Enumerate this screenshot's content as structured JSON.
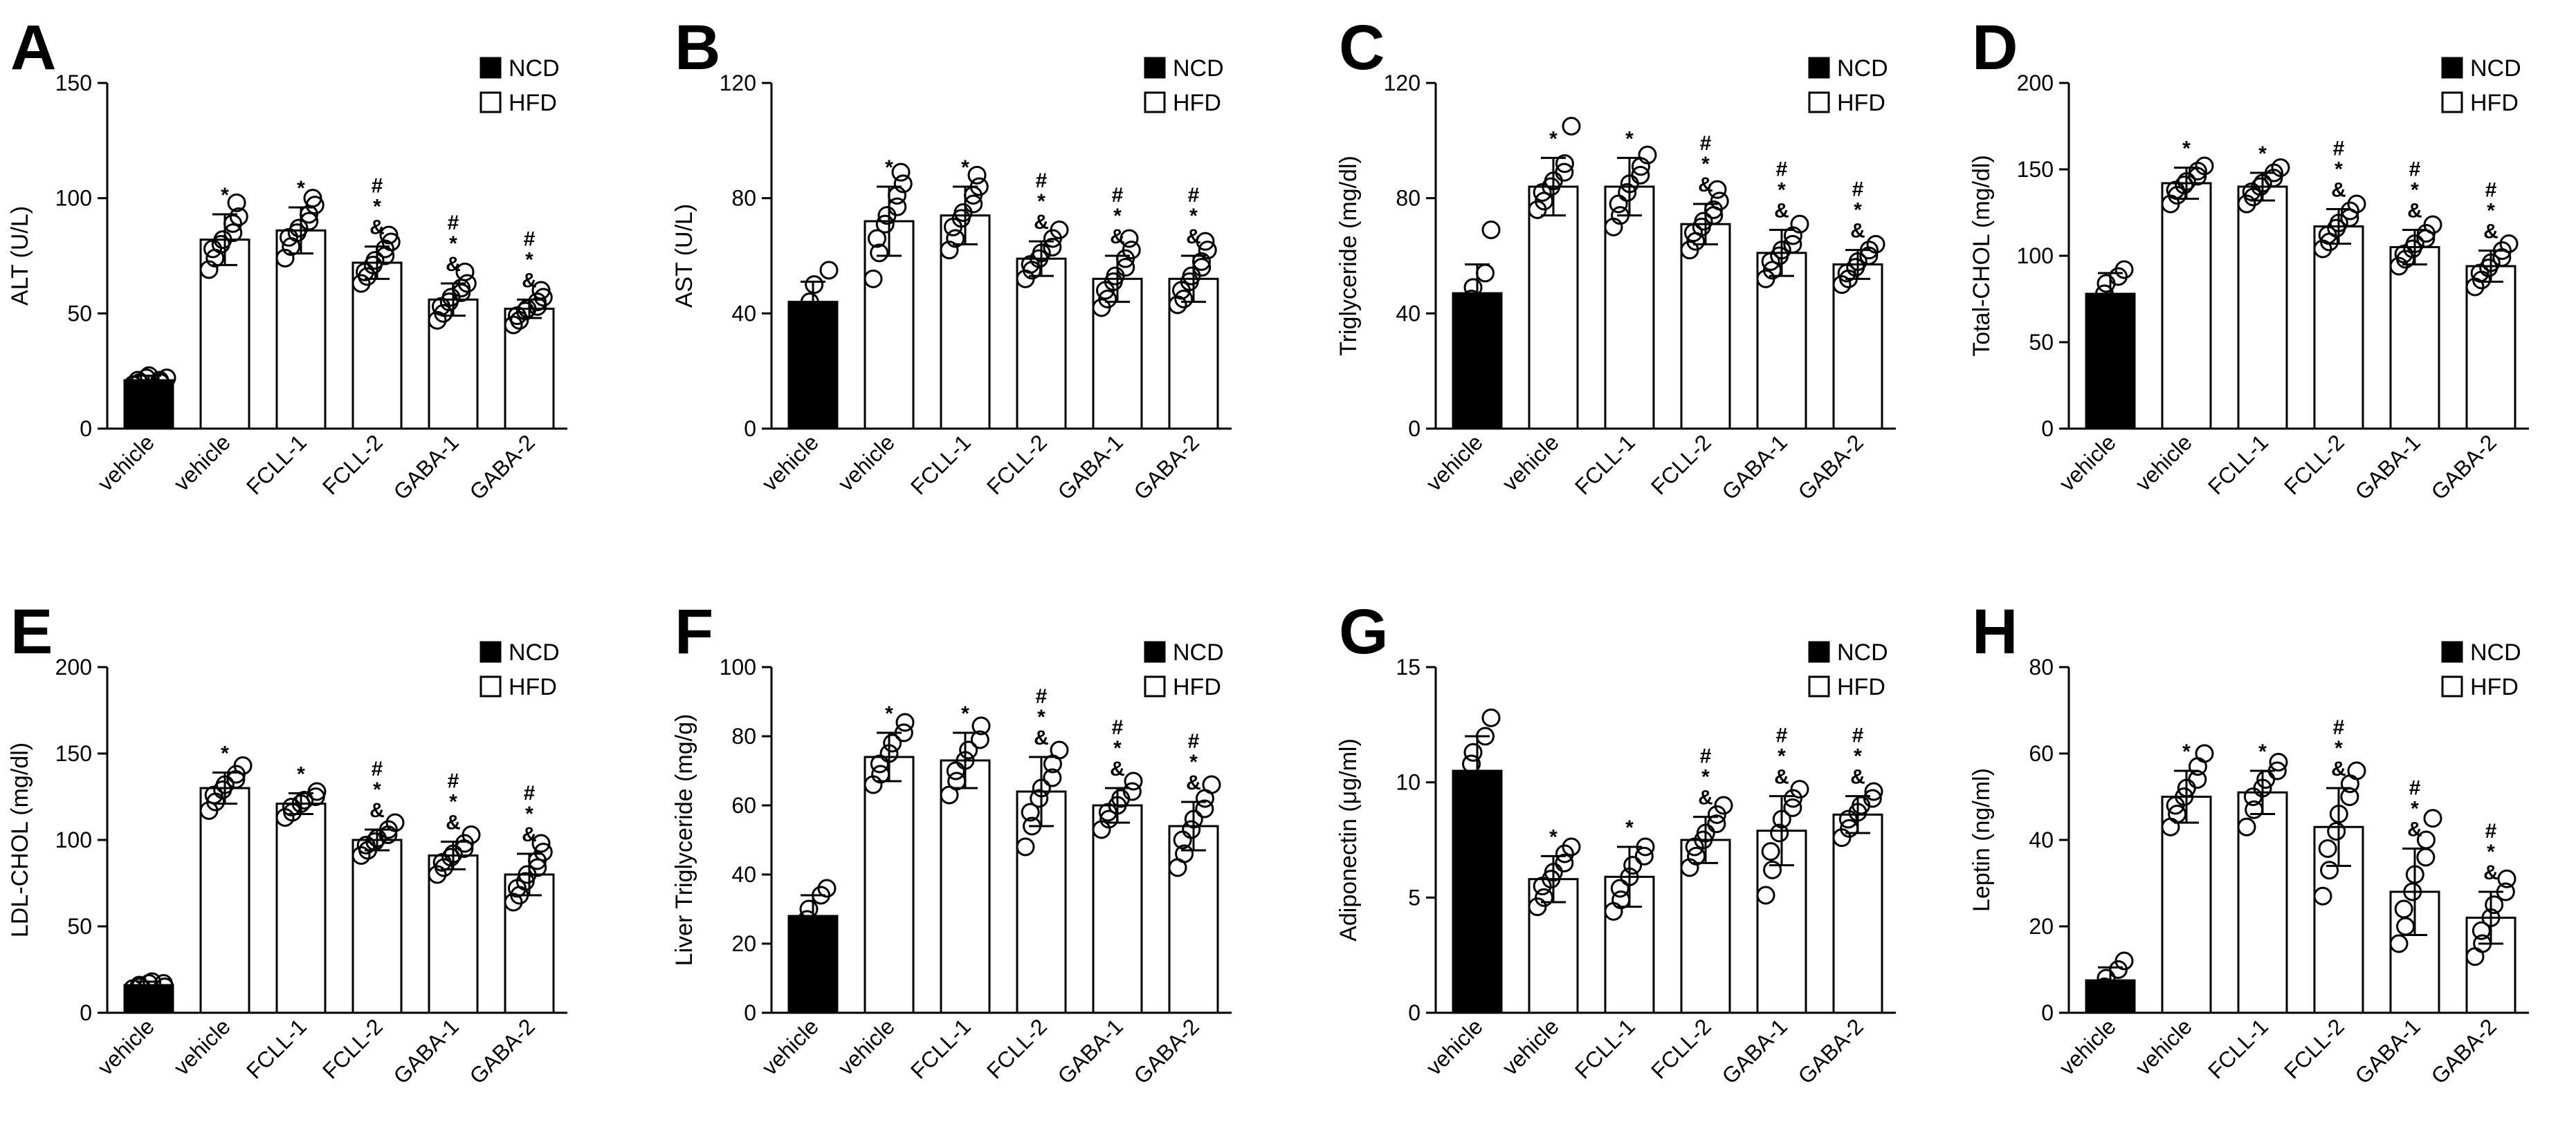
{
  "figure": {
    "legend": {
      "ncd": "NCD",
      "hfd": "HFD"
    },
    "colors": {
      "ncd": "#000000",
      "hfd": "#ffffff",
      "stroke": "#000000"
    }
  },
  "chart_data": [
    {
      "panel": "A",
      "type": "bar",
      "ylabel": "ALT (U/L)",
      "yticks": [
        0,
        50,
        100,
        150
      ],
      "ylim": [
        0,
        150
      ],
      "categories": [
        "vehicle",
        "vehicle",
        "FCLL-1",
        "FCLL-2",
        "GABA-1",
        "GABA-2"
      ],
      "groups": [
        "NCD",
        "HFD",
        "HFD",
        "HFD",
        "HFD",
        "HFD"
      ],
      "values": [
        21,
        82,
        86,
        72,
        56,
        52
      ],
      "errors": [
        2,
        11,
        10,
        7,
        7,
        4
      ],
      "significance": [
        "",
        "*",
        "*",
        "#*&",
        "#*&",
        "#*&"
      ],
      "points": [
        [
          19,
          20,
          21,
          22,
          23,
          21,
          20,
          22
        ],
        [
          69,
          74,
          78,
          80,
          82,
          85,
          89,
          92,
          98
        ],
        [
          74,
          79,
          83,
          85,
          87,
          90,
          93,
          97,
          100
        ],
        [
          63,
          66,
          68,
          71,
          73,
          75,
          78,
          81,
          84
        ],
        [
          47,
          50,
          53,
          55,
          57,
          59,
          61,
          63,
          68
        ],
        [
          45,
          47,
          49,
          51,
          52,
          53,
          55,
          57,
          60
        ]
      ]
    },
    {
      "panel": "B",
      "type": "bar",
      "ylabel": "AST (U/L)",
      "yticks": [
        0,
        40,
        80,
        120
      ],
      "ylim": [
        0,
        120
      ],
      "categories": [
        "vehicle",
        "vehicle",
        "FCLL-1",
        "FCLL-2",
        "GABA-1",
        "GABA-2"
      ],
      "groups": [
        "NCD",
        "HFD",
        "HFD",
        "HFD",
        "HFD",
        "HFD"
      ],
      "values": [
        44,
        72,
        74,
        59,
        52,
        52
      ],
      "errors": [
        7,
        12,
        10,
        6,
        8,
        8
      ],
      "significance": [
        "",
        "*",
        "*",
        "#*&",
        "#*&",
        "#*&"
      ],
      "points": [
        [
          41,
          44,
          50,
          55
        ],
        [
          52,
          61,
          66,
          71,
          74,
          77,
          81,
          85,
          89
        ],
        [
          62,
          66,
          70,
          73,
          75,
          78,
          81,
          84,
          88
        ],
        [
          52,
          55,
          57,
          59,
          61,
          63,
          66,
          69
        ],
        [
          42,
          45,
          48,
          51,
          53,
          56,
          59,
          62,
          66
        ],
        [
          43,
          45,
          48,
          51,
          53,
          56,
          58,
          62,
          65
        ]
      ]
    },
    {
      "panel": "C",
      "type": "bar",
      "ylabel": "Triglyceride (mg/dl)",
      "yticks": [
        0,
        40,
        80,
        120
      ],
      "ylim": [
        0,
        120
      ],
      "categories": [
        "vehicle",
        "vehicle",
        "FCLL-1",
        "FCLL-2",
        "GABA-1",
        "GABA-2"
      ],
      "groups": [
        "NCD",
        "HFD",
        "HFD",
        "HFD",
        "HFD",
        "HFD"
      ],
      "values": [
        47,
        84,
        84,
        71,
        61,
        57
      ],
      "errors": [
        10,
        10,
        10,
        7,
        8,
        5
      ],
      "significance": [
        "",
        "*",
        "*",
        "#*&",
        "#*&",
        "#*&"
      ],
      "points": [
        [
          42,
          45,
          49,
          54,
          69
        ],
        [
          76,
          79,
          82,
          84,
          86,
          89,
          92,
          105
        ],
        [
          70,
          74,
          78,
          82,
          85,
          88,
          91,
          95
        ],
        [
          62,
          65,
          68,
          70,
          72,
          74,
          76,
          79,
          83
        ],
        [
          52,
          55,
          58,
          60,
          62,
          64,
          67,
          71
        ],
        [
          50,
          52,
          54,
          56,
          58,
          60,
          62,
          64
        ]
      ]
    },
    {
      "panel": "D",
      "type": "bar",
      "ylabel": "Total-CHOL (mg/dl)",
      "yticks": [
        0,
        50,
        100,
        150,
        200
      ],
      "ylim": [
        0,
        200
      ],
      "categories": [
        "vehicle",
        "vehicle",
        "FCLL-1",
        "FCLL-2",
        "GABA-1",
        "GABA-2"
      ],
      "groups": [
        "NCD",
        "HFD",
        "HFD",
        "HFD",
        "HFD",
        "HFD"
      ],
      "values": [
        78,
        142,
        140,
        117,
        105,
        94
      ],
      "errors": [
        12,
        9,
        8,
        10,
        10,
        9
      ],
      "significance": [
        "",
        "*",
        "*",
        "#*&",
        "#*&",
        "#*&"
      ],
      "points": [
        [
          72,
          78,
          84,
          88,
          92
        ],
        [
          130,
          135,
          138,
          141,
          143,
          146,
          149,
          152
        ],
        [
          130,
          134,
          137,
          140,
          142,
          145,
          148,
          151
        ],
        [
          104,
          108,
          112,
          116,
          119,
          122,
          126,
          130
        ],
        [
          94,
          98,
          101,
          104,
          107,
          110,
          113,
          118
        ],
        [
          82,
          86,
          90,
          93,
          96,
          99,
          103,
          107
        ]
      ]
    },
    {
      "panel": "E",
      "type": "bar",
      "ylabel": "LDL-CHOL (mg/dl)",
      "yticks": [
        0,
        50,
        100,
        150,
        200
      ],
      "ylim": [
        0,
        200
      ],
      "categories": [
        "vehicle",
        "vehicle",
        "FCLL-1",
        "FCLL-2",
        "GABA-1",
        "GABA-2"
      ],
      "groups": [
        "NCD",
        "HFD",
        "HFD",
        "HFD",
        "HFD",
        "HFD"
      ],
      "values": [
        16,
        130,
        121,
        100,
        91,
        80
      ],
      "errors": [
        2,
        9,
        6,
        6,
        8,
        12
      ],
      "significance": [
        "",
        "*",
        "*",
        "#*&",
        "#*&",
        "#*&"
      ],
      "points": [
        [
          14,
          15,
          16,
          17,
          18,
          17,
          15
        ],
        [
          117,
          122,
          126,
          129,
          132,
          135,
          138,
          143
        ],
        [
          113,
          116,
          119,
          121,
          123,
          125,
          128
        ],
        [
          91,
          94,
          97,
          99,
          101,
          103,
          106,
          110
        ],
        [
          80,
          84,
          87,
          90,
          92,
          95,
          98,
          103
        ],
        [
          64,
          68,
          72,
          76,
          80,
          84,
          88,
          93,
          98
        ]
      ]
    },
    {
      "panel": "F",
      "type": "bar",
      "ylabel": "Liver Triglyceride (mg/g)",
      "yticks": [
        0,
        20,
        40,
        60,
        80,
        100
      ],
      "ylim": [
        0,
        100
      ],
      "categories": [
        "vehicle",
        "vehicle",
        "FCLL-1",
        "FCLL-2",
        "GABA-1",
        "GABA-2"
      ],
      "groups": [
        "NCD",
        "HFD",
        "HFD",
        "HFD",
        "HFD",
        "HFD"
      ],
      "values": [
        28,
        74,
        73,
        64,
        60,
        54
      ],
      "errors": [
        6,
        7,
        8,
        10,
        5,
        7
      ],
      "significance": [
        "",
        "*",
        "*",
        "#*&",
        "#*&",
        "#*&"
      ],
      "points": [
        [
          24,
          27,
          30,
          34,
          36
        ],
        [
          66,
          69,
          72,
          75,
          78,
          81,
          84
        ],
        [
          63,
          67,
          70,
          73,
          76,
          79,
          83
        ],
        [
          48,
          54,
          58,
          62,
          65,
          68,
          72,
          76
        ],
        [
          53,
          56,
          58,
          60,
          62,
          64,
          67
        ],
        [
          42,
          46,
          50,
          53,
          56,
          59,
          62,
          66
        ]
      ]
    },
    {
      "panel": "G",
      "type": "bar",
      "ylabel": "Adiponectin  (μg/ml)",
      "yticks": [
        0,
        5,
        10,
        15
      ],
      "ylim": [
        0,
        15
      ],
      "categories": [
        "vehicle",
        "vehicle",
        "FCLL-1",
        "FCLL-2",
        "GABA-1",
        "GABA-2"
      ],
      "groups": [
        "NCD",
        "HFD",
        "HFD",
        "HFD",
        "HFD",
        "HFD"
      ],
      "values": [
        10.5,
        5.8,
        5.9,
        7.5,
        7.9,
        8.6
      ],
      "errors": [
        1.5,
        1.0,
        1.3,
        1.0,
        1.5,
        0.8
      ],
      "significance": [
        "",
        "*",
        "*",
        "#*&",
        "#*&",
        "#*&"
      ],
      "points": [
        [
          10.0,
          10.8,
          11.3,
          12.0,
          12.8
        ],
        [
          4.6,
          5.0,
          5.5,
          5.8,
          6.1,
          6.5,
          6.9,
          7.2
        ],
        [
          4.4,
          4.9,
          5.4,
          5.9,
          6.4,
          6.8,
          7.2
        ],
        [
          6.3,
          6.8,
          7.2,
          7.5,
          7.8,
          8.2,
          8.6,
          9.0
        ],
        [
          5.1,
          6.2,
          7.0,
          7.8,
          8.4,
          8.9,
          9.3,
          9.7
        ],
        [
          7.6,
          8.0,
          8.4,
          8.7,
          9.0,
          9.3,
          9.6
        ]
      ]
    },
    {
      "panel": "H",
      "type": "bar",
      "ylabel": "Leptin  (ng/ml)",
      "yticks": [
        0,
        20,
        40,
        60,
        80
      ],
      "ylim": [
        0,
        80
      ],
      "categories": [
        "vehicle",
        "vehicle",
        "FCLL-1",
        "FCLL-2",
        "GABA-1",
        "GABA-2"
      ],
      "groups": [
        "NCD",
        "HFD",
        "HFD",
        "HFD",
        "HFD",
        "HFD"
      ],
      "values": [
        7.5,
        50,
        51,
        43,
        28,
        22
      ],
      "errors": [
        3,
        6,
        5,
        9,
        10,
        6
      ],
      "significance": [
        "",
        "*",
        "*",
        "#*&",
        "#*&",
        "#*&"
      ],
      "points": [
        [
          4,
          6,
          8,
          10,
          12
        ],
        [
          43,
          46,
          48,
          50,
          52,
          54,
          57,
          60
        ],
        [
          43,
          47,
          50,
          52,
          54,
          56,
          58
        ],
        [
          27,
          33,
          38,
          42,
          46,
          50,
          53,
          56
        ],
        [
          16,
          20,
          24,
          28,
          32,
          36,
          40,
          45
        ],
        [
          13,
          16,
          19,
          22,
          25,
          28,
          31
        ]
      ]
    }
  ]
}
